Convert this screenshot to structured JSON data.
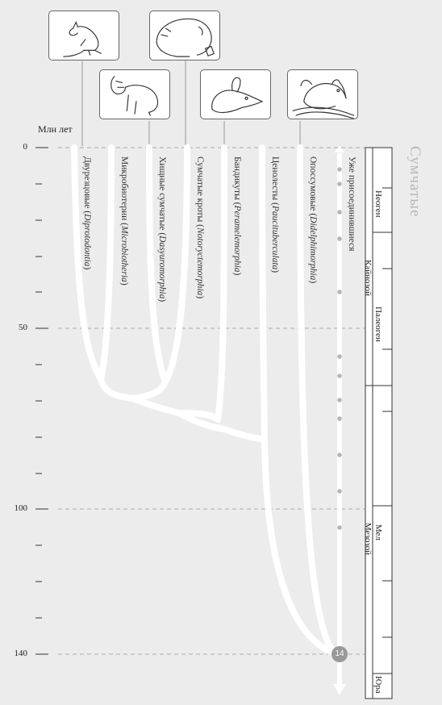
{
  "axis": {
    "title": "Млн лет",
    "ticks": [
      "0",
      "50",
      "100",
      "140"
    ]
  },
  "group_title": "Сумчатые",
  "clades": [
    {
      "ru": "Двурезцовые (",
      "latin": "Diprotodontia",
      "close": ")"
    },
    {
      "ru": "Микробиотерии (",
      "latin": "Microbiotheria",
      "close": ")"
    },
    {
      "ru": "Хищные сумчатые (",
      "latin": "Dasyuromorphia",
      "close": ")"
    },
    {
      "ru": "Сумчатые кроты (",
      "latin": "Notoryctemorphia",
      "close": ")"
    },
    {
      "ru": "Бандикуты (",
      "latin": "Peramelemorphia",
      "close": ")"
    },
    {
      "ru": "Ценолесты (",
      "latin": "Paucituberculata",
      "close": ")"
    },
    {
      "ru": "Опоссумовые (",
      "latin": "Didelphimorphia",
      "close": ")"
    }
  ],
  "joined_label": "Уже присоединившиеся",
  "badge": "14",
  "geologic": {
    "eras": [
      "Кайнозой",
      "Мезозой"
    ],
    "periods": [
      "Неоген",
      "Палеоген",
      "Мел",
      "Юра"
    ]
  },
  "animals": [
    "kangaroo-icon",
    "wombat-icon",
    "tasmanian-devil-icon",
    "bandicoot-icon",
    "opossum-icon"
  ]
}
